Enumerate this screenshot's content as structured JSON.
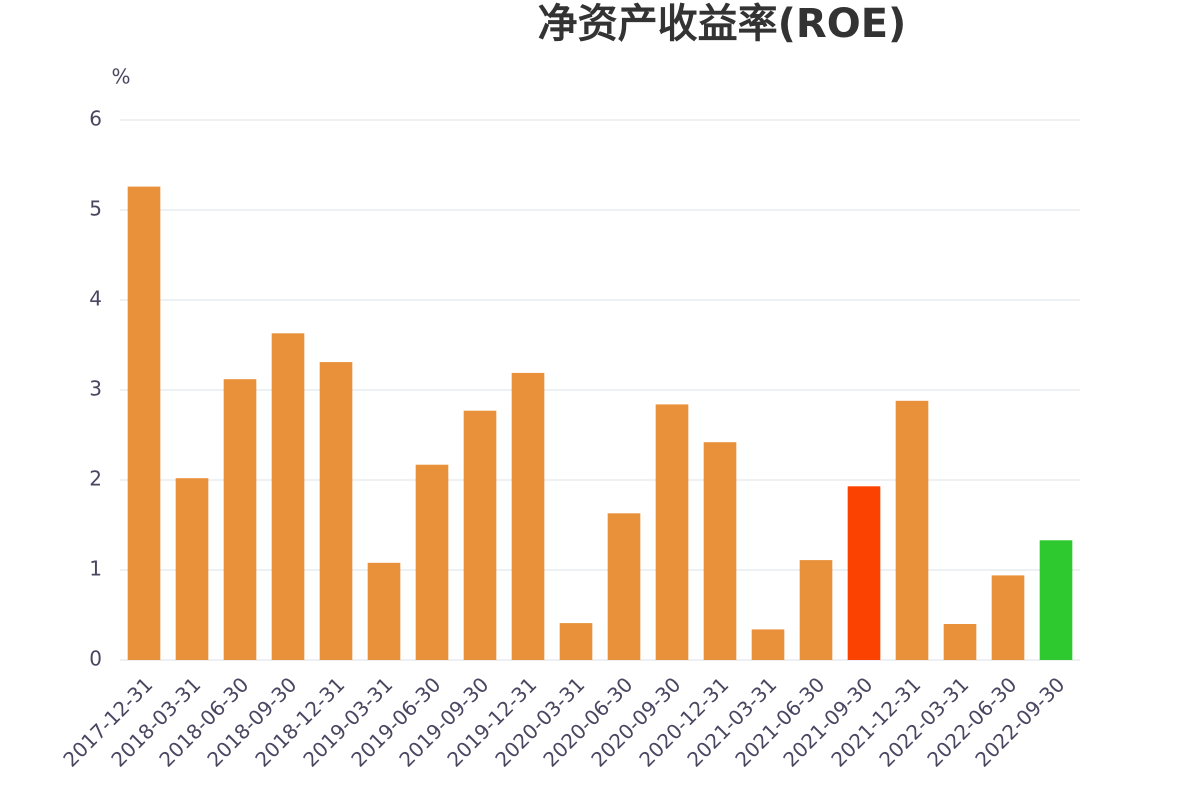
{
  "chart_data": {
    "type": "bar",
    "title": "净资产收益率(ROE)",
    "y_unit": "%",
    "categories": [
      "2017-12-31",
      "2018-03-31",
      "2018-06-30",
      "2018-09-30",
      "2018-12-31",
      "2019-03-31",
      "2019-06-30",
      "2019-09-30",
      "2019-12-31",
      "2020-03-31",
      "2020-06-30",
      "2020-09-30",
      "2020-12-31",
      "2021-03-31",
      "2021-06-30",
      "2021-09-30",
      "2021-12-31",
      "2022-03-31",
      "2022-06-30",
      "2022-09-30"
    ],
    "values": [
      5.26,
      2.02,
      3.12,
      3.63,
      3.31,
      1.08,
      2.17,
      2.77,
      3.19,
      0.41,
      1.63,
      2.84,
      2.42,
      0.34,
      1.11,
      1.93,
      2.88,
      0.4,
      0.94,
      1.33
    ],
    "colors": [
      "#e8913a",
      "#e8913a",
      "#e8913a",
      "#e8913a",
      "#e8913a",
      "#e8913a",
      "#e8913a",
      "#e8913a",
      "#e8913a",
      "#e8913a",
      "#e8913a",
      "#e8913a",
      "#e8913a",
      "#e8913a",
      "#e8913a",
      "#fc4200",
      "#e8913a",
      "#e8913a",
      "#e8913a",
      "#2ec92e"
    ],
    "ylim": [
      0,
      6
    ],
    "yticks": [
      0,
      1,
      2,
      3,
      4,
      5,
      6
    ],
    "grid": true
  }
}
